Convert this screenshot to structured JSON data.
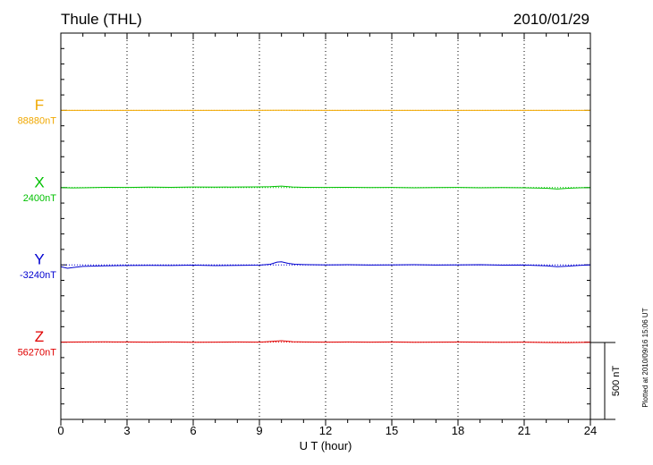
{
  "header": {
    "station": "Thule (THL)",
    "date": "2010/01/29"
  },
  "footer_note": "Plotted at 2010/09/16 15:06 UT",
  "colors": {
    "F": "#f0a800",
    "X": "#00c000",
    "Y": "#0000d0",
    "Z": "#e00000",
    "axis": "#000000",
    "grid": "#000000"
  },
  "chart_data": {
    "type": "line",
    "title": "Thule (THL)",
    "subtitle": "2010/01/29",
    "xlabel": "U T (hour)",
    "ylabel": "",
    "xlim": [
      0,
      24
    ],
    "x_ticks": [
      0,
      3,
      6,
      9,
      12,
      15,
      18,
      21,
      24
    ],
    "x_tick_labels": [
      "0",
      "3",
      "6",
      "9",
      "12",
      "15",
      "18",
      "21",
      "24"
    ],
    "grid": "vertical dotted every 3 hours",
    "scale_bar": {
      "label": "500 nT",
      "value_nT": 500
    },
    "series": [
      {
        "name": "F",
        "baseline_label": "88880nT",
        "baseline_nT": 88880,
        "x": [
          0,
          2,
          4,
          6,
          8,
          10,
          12,
          14,
          16,
          18,
          20,
          22,
          24
        ],
        "deviation_nT": [
          0,
          0,
          0,
          0,
          0,
          1,
          0,
          0,
          0,
          0,
          0,
          0,
          0
        ]
      },
      {
        "name": "X",
        "baseline_label": "2400nT",
        "baseline_nT": 2400,
        "x": [
          0,
          0.5,
          1,
          2,
          3,
          4,
          5,
          6,
          7,
          8,
          9,
          9.5,
          10,
          10.5,
          11,
          12,
          13,
          14,
          15,
          16,
          17,
          18,
          19,
          20,
          21,
          22,
          22.5,
          23,
          23.5,
          24
        ],
        "deviation_nT": [
          0,
          -2,
          -1,
          2,
          1,
          3,
          2,
          4,
          3,
          4,
          5,
          6,
          10,
          4,
          2,
          1,
          2,
          0,
          1,
          -1,
          0,
          1,
          -1,
          0,
          -1,
          -4,
          -9,
          -4,
          -1,
          0
        ]
      },
      {
        "name": "Y",
        "baseline_label": "-3240nT",
        "baseline_nT": -3240,
        "x": [
          0,
          0.3,
          0.6,
          1,
          2,
          3,
          4,
          5,
          6,
          7,
          8,
          9,
          9.5,
          9.8,
          10,
          10.3,
          10.6,
          11,
          12,
          13,
          14,
          15,
          16,
          17,
          18,
          19,
          20,
          21,
          22,
          22.5,
          23,
          23.5,
          24
        ],
        "deviation_nT": [
          -12,
          -22,
          -16,
          -10,
          -6,
          -4,
          -3,
          -4,
          -2,
          -5,
          -3,
          -2,
          4,
          18,
          20,
          10,
          4,
          2,
          0,
          1,
          -1,
          0,
          1,
          -1,
          0,
          1,
          -2,
          -1,
          -6,
          -12,
          -8,
          -3,
          0
        ]
      },
      {
        "name": "Z",
        "baseline_label": "56270nT",
        "baseline_nT": 56270,
        "x": [
          0,
          1,
          2,
          3,
          4,
          5,
          6,
          7,
          8,
          9,
          9.5,
          10,
          10.5,
          11,
          12,
          13,
          14,
          15,
          16,
          17,
          18,
          19,
          20,
          21,
          22,
          23,
          24
        ],
        "deviation_nT": [
          0,
          1,
          2,
          1,
          0,
          1,
          -1,
          0,
          1,
          0,
          4,
          9,
          3,
          1,
          0,
          1,
          0,
          1,
          -1,
          0,
          1,
          0,
          -1,
          0,
          -2,
          -3,
          -1
        ]
      }
    ]
  }
}
